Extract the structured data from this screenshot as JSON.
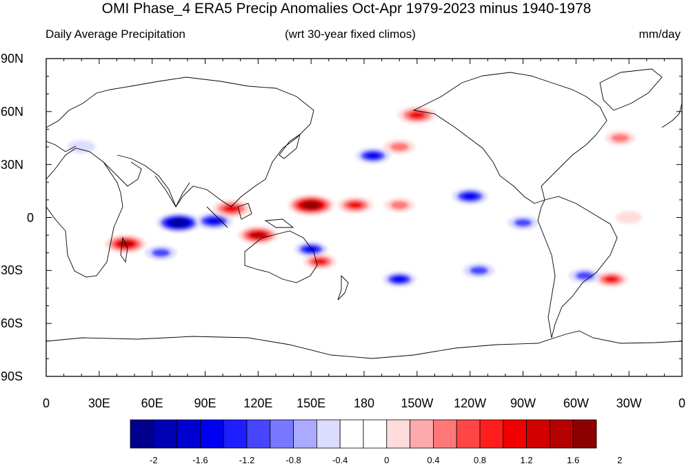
{
  "figure": {
    "title": "OMI Phase_4 ERA5 Precip Anomalies Oct-Apr 1979-2023 minus 1940-1978",
    "left_subtitle": "Daily Average Precipitation",
    "center_subtitle": "(wrt 30-year fixed climos)",
    "right_subtitle": "mm/day"
  },
  "axes": {
    "y_ticks": [
      "90N",
      "60N",
      "30N",
      "0",
      "30S",
      "60S",
      "90S"
    ],
    "x_ticks": [
      "0",
      "30E",
      "60E",
      "90E",
      "120E",
      "150E",
      "180",
      "150W",
      "120W",
      "90W",
      "60W",
      "30W",
      "0"
    ]
  },
  "colorbar": {
    "labels": [
      "-2",
      "-1.6",
      "-1.2",
      "-0.8",
      "-0.4",
      "0",
      "0.4",
      "0.8",
      "1.2",
      "1.6",
      "2"
    ],
    "colors": [
      "#00008c",
      "#0000b4",
      "#0000d2",
      "#0000f0",
      "#1e1eff",
      "#4646ff",
      "#7878ff",
      "#aaaaff",
      "#dcdcff",
      "#ffffff",
      "#ffffff",
      "#ffdcdc",
      "#ffaaaa",
      "#ff7878",
      "#ff4646",
      "#ff1e1e",
      "#f00000",
      "#d20000",
      "#b40000",
      "#8c0000"
    ]
  },
  "map": {
    "projection": "cylindrical equidistant, centered on 180",
    "anomaly_regions": [
      {
        "lon": 75,
        "lat": -3,
        "value": -1.8
      },
      {
        "lon": 95,
        "lat": -2,
        "value": -1.3
      },
      {
        "lon": 65,
        "lat": -20,
        "value": -0.9
      },
      {
        "lon": 45,
        "lat": -15,
        "value": 1.6
      },
      {
        "lon": 105,
        "lat": 5,
        "value": 1.4
      },
      {
        "lon": 120,
        "lat": -10,
        "value": 1.5
      },
      {
        "lon": 150,
        "lat": 7,
        "value": 2.0
      },
      {
        "lon": 175,
        "lat": 7,
        "value": 1.2
      },
      {
        "lon": 200,
        "lat": 7,
        "value": 0.8
      },
      {
        "lon": 150,
        "lat": -18,
        "value": -1.0
      },
      {
        "lon": 155,
        "lat": -25,
        "value": 1.0
      },
      {
        "lon": 185,
        "lat": 35,
        "value": -1.1
      },
      {
        "lon": 210,
        "lat": 58,
        "value": 1.4
      },
      {
        "lon": 200,
        "lat": 40,
        "value": 0.9
      },
      {
        "lon": 240,
        "lat": 12,
        "value": -1.2
      },
      {
        "lon": 245,
        "lat": -30,
        "value": -0.9
      },
      {
        "lon": 200,
        "lat": -35,
        "value": -1.0
      },
      {
        "lon": 320,
        "lat": -35,
        "value": 1.0
      },
      {
        "lon": 305,
        "lat": -33,
        "value": -0.9
      },
      {
        "lon": 325,
        "lat": 45,
        "value": 0.8
      },
      {
        "lon": 330,
        "lat": 0,
        "value": 0.5
      },
      {
        "lon": 20,
        "lat": 40,
        "value": -0.6
      },
      {
        "lon": 270,
        "lat": -3,
        "value": -0.8
      }
    ]
  }
}
